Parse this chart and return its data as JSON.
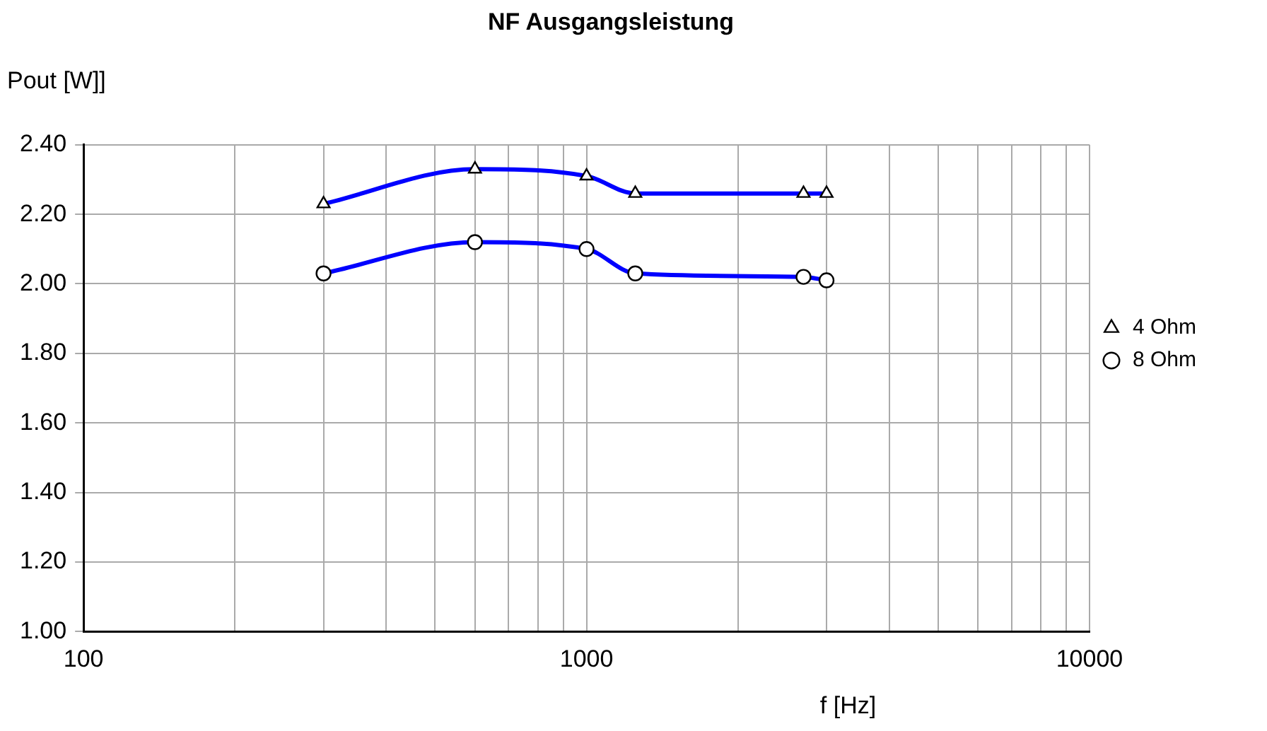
{
  "chart_data": {
    "type": "line",
    "title": "NF Ausgangsleistung",
    "xlabel": "f [Hz]",
    "ylabel": "Pout [W]]",
    "log": "x",
    "grid": true,
    "legend": "right",
    "line_style": "solid",
    "xlim": [
      100,
      10000
    ],
    "xticks": [
      100,
      {
        "value": 200,
        "label": null
      },
      {
        "value": 300,
        "label": null
      },
      {
        "value": 400,
        "label": null
      },
      {
        "value": 500,
        "label": null
      },
      {
        "value": 600,
        "label": null
      },
      {
        "value": 700,
        "label": null
      },
      {
        "value": 800,
        "label": null
      },
      {
        "value": 900,
        "label": null
      },
      1000,
      {
        "value": 2000,
        "label": null
      },
      {
        "value": 3000,
        "label": null
      },
      {
        "value": 4000,
        "label": null
      },
      {
        "value": 5000,
        "label": null
      },
      {
        "value": 6000,
        "label": null
      },
      {
        "value": 7000,
        "label": null
      },
      {
        "value": 8000,
        "label": null
      },
      {
        "value": 9000,
        "label": null
      },
      10000
    ],
    "ylim": [
      1.0,
      2.4
    ],
    "yticks": [
      {
        "value": 1.0,
        "label": "1.00"
      },
      {
        "value": 1.2,
        "label": "1.20"
      },
      {
        "value": 1.4,
        "label": "1.40"
      },
      {
        "value": 1.6,
        "label": "1.60"
      },
      {
        "value": 1.8,
        "label": "1.80"
      },
      {
        "value": 2.0,
        "label": "2.00"
      },
      {
        "value": 2.2,
        "label": "2.20"
      },
      {
        "value": 2.4,
        "label": "2.40"
      }
    ],
    "x": [
      300,
      600,
      1000,
      1250,
      2700,
      3000
    ],
    "series": [
      {
        "name": "4 Ohm",
        "color": "#0000ff",
        "marker": "triangle",
        "values": [
          2.23,
          2.33,
          2.31,
          2.26,
          2.26,
          2.26
        ]
      },
      {
        "name": "8 Ohm",
        "color": "#0000ff",
        "marker": "circle",
        "values": [
          2.03,
          2.12,
          2.1,
          2.03,
          2.02,
          2.01
        ]
      }
    ]
  }
}
